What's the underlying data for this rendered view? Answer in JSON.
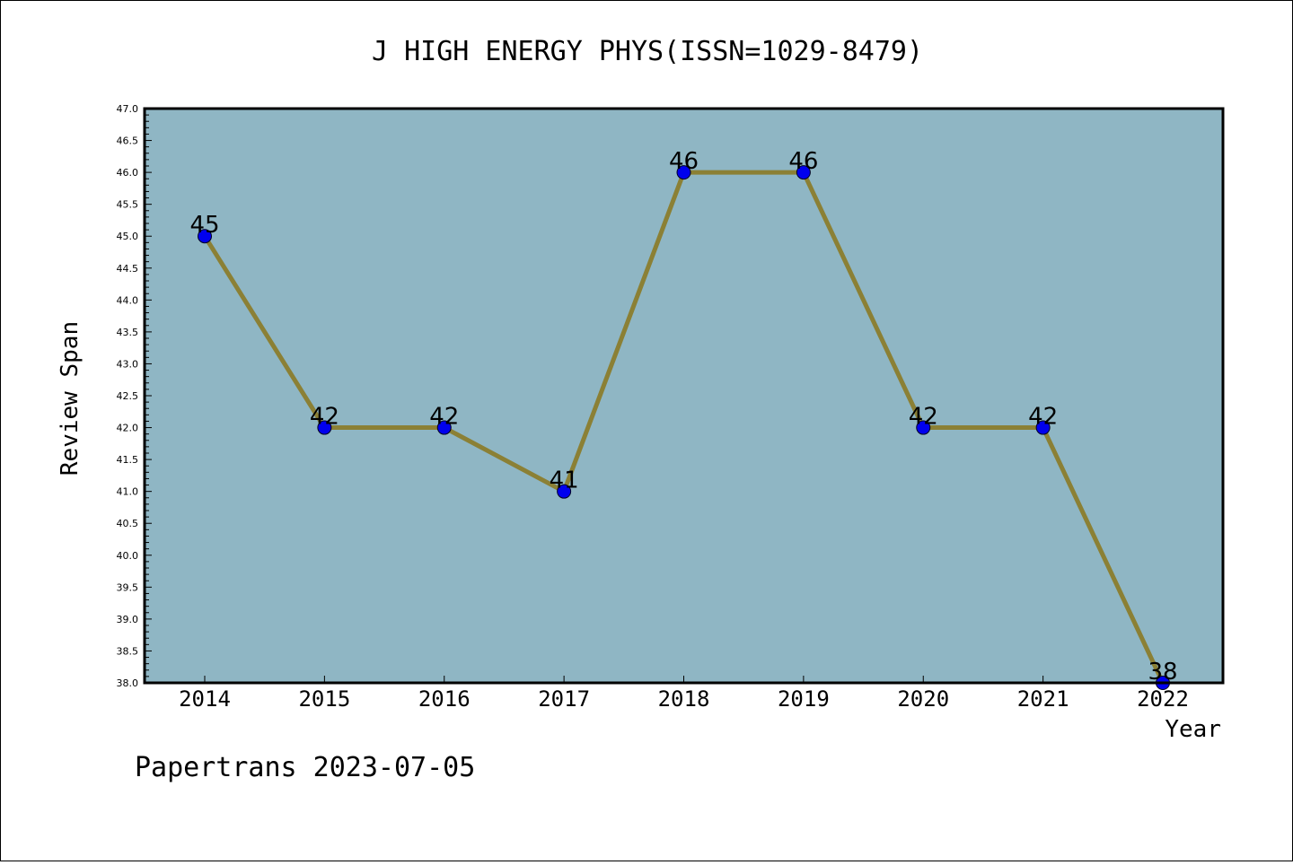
{
  "chart_data": {
    "type": "line",
    "title": "J HIGH ENERGY PHYS(ISSN=1029-8479)",
    "xlabel": "Year",
    "ylabel": "Review Span",
    "categories": [
      "2014",
      "2015",
      "2016",
      "2017",
      "2018",
      "2019",
      "2020",
      "2021",
      "2022"
    ],
    "series": [
      {
        "values": [
          45,
          42,
          42,
          41,
          46,
          46,
          42,
          42,
          38
        ]
      }
    ],
    "data_labels": [
      "45",
      "42",
      "42",
      "41",
      "46",
      "46",
      "42",
      "42",
      "38"
    ],
    "ylim": [
      38.0,
      47.0
    ],
    "yticks": [
      "38.0",
      "38.5",
      "39.0",
      "39.5",
      "40.0",
      "40.5",
      "41.0",
      "41.5",
      "42.0",
      "42.5",
      "43.0",
      "43.5",
      "44.0",
      "44.5",
      "45.0",
      "45.5",
      "46.0",
      "46.5",
      "47.0"
    ],
    "grid": false,
    "colors": {
      "plot_background": "#8fb6c4",
      "line": "#8b8035",
      "marker": "#0000ee"
    }
  },
  "footer": {
    "text": "Papertrans 2023-07-05"
  }
}
